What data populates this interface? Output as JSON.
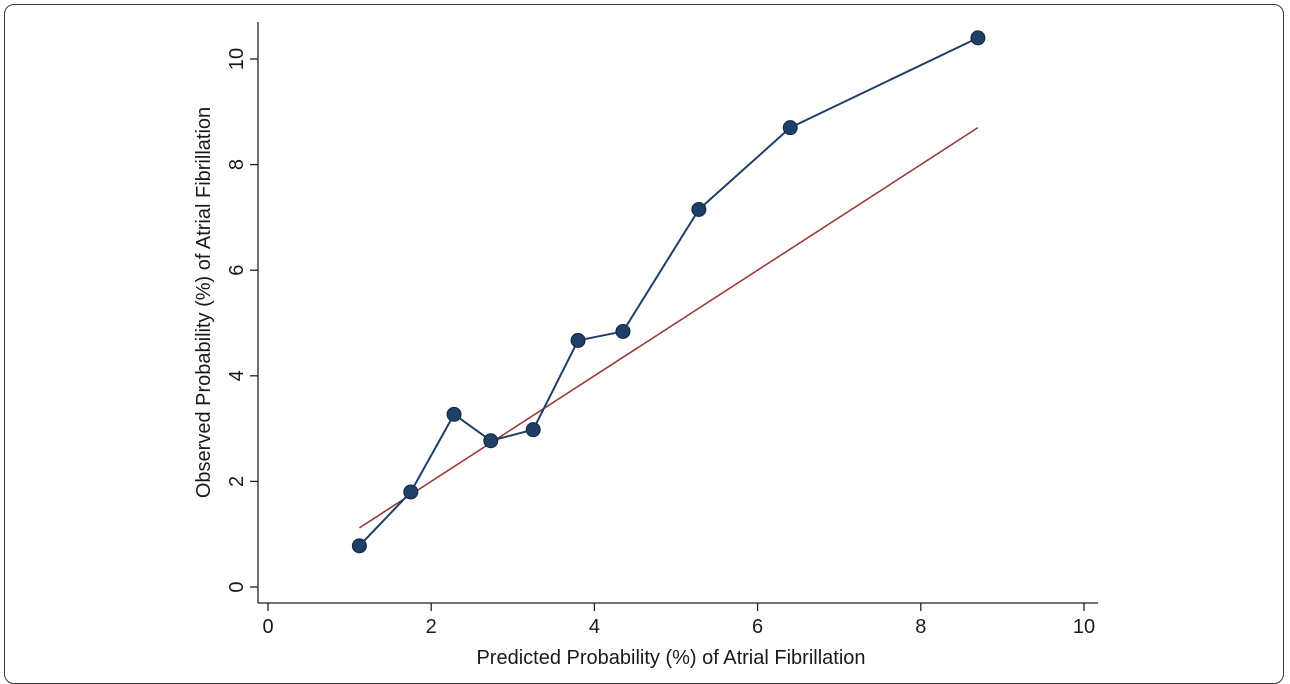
{
  "chart_data": {
    "type": "line",
    "xlabel": "Predicted Probability (%) of Atrial Fibrillation",
    "ylabel": "Observed Probability (%) of Atrial Fibrillation",
    "xlim": [
      0,
      10
    ],
    "ylim": [
      0,
      10
    ],
    "x_ticks": [
      "0",
      "2",
      "4",
      "6",
      "8",
      "10"
    ],
    "y_ticks": [
      "0",
      "2",
      "4",
      "6",
      "8",
      "10"
    ],
    "grid": false,
    "series": [
      {
        "type": "line+markers",
        "color": "#1f3f66",
        "x": [
          1.12,
          1.75,
          2.28,
          2.73,
          3.25,
          3.8,
          4.35,
          5.28,
          6.4,
          8.7
        ],
        "y": [
          0.78,
          1.8,
          3.27,
          2.77,
          2.98,
          4.67,
          4.84,
          7.15,
          8.7,
          10.4
        ]
      },
      {
        "type": "line",
        "color": "#9b3a3a",
        "x": [
          1.12,
          8.7
        ],
        "y": [
          1.12,
          8.7
        ]
      }
    ]
  }
}
